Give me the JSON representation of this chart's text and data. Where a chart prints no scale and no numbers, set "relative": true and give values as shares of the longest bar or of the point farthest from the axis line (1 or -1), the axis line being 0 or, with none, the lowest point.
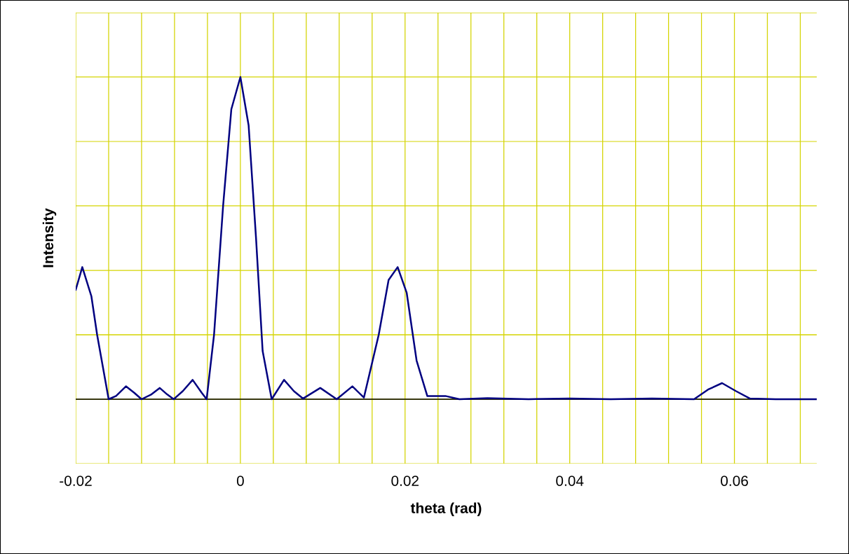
{
  "chart_data": {
    "type": "line",
    "xlabel": "theta (rad)",
    "ylabel": "Intensity",
    "relative": true,
    "grid": true,
    "marker": "none",
    "line_style": "solid",
    "xlim": [
      -0.02,
      0.07
    ],
    "xticks": [
      -0.02,
      {
        "value": -0.016,
        "label": null
      },
      {
        "value": -0.012,
        "label": null
      },
      {
        "value": -0.008,
        "label": null
      },
      {
        "value": -0.004,
        "label": null
      },
      0,
      {
        "value": 0.004,
        "label": null
      },
      {
        "value": 0.008,
        "label": null
      },
      {
        "value": 0.012,
        "label": null
      },
      {
        "value": 0.016,
        "label": null
      },
      0.02,
      {
        "value": 0.024,
        "label": null
      },
      {
        "value": 0.028,
        "label": null
      },
      {
        "value": 0.032,
        "label": null
      },
      {
        "value": 0.036,
        "label": null
      },
      0.04,
      {
        "value": 0.044,
        "label": null
      },
      {
        "value": 0.048,
        "label": null
      },
      {
        "value": 0.052,
        "label": null
      },
      {
        "value": 0.056,
        "label": null
      },
      0.06,
      {
        "value": 0.064,
        "label": null
      },
      {
        "value": 0.068,
        "label": null
      }
    ],
    "series": [
      {
        "color": "#000080",
        "x": [
          -0.02,
          -0.0192,
          -0.0181,
          -0.0174,
          -0.016,
          -0.0151,
          -0.0139,
          -0.0129,
          -0.012,
          -0.0108,
          -0.0098,
          -0.0089,
          -0.0081,
          -0.007,
          -0.0058,
          -0.0047,
          -0.0041,
          -0.0032,
          -0.0021,
          -0.0011,
          0,
          0.001,
          0.0019,
          0.0027,
          0.0038,
          0.0053,
          0.0065,
          0.0076,
          0.0097,
          0.0117,
          0.0136,
          0.015,
          0.0168,
          0.018,
          0.0191,
          0.0202,
          0.0214,
          0.0227,
          0.0249,
          0.0266,
          0.03,
          0.035,
          0.04,
          0.045,
          0.05,
          0.0551,
          0.0568,
          0.0585,
          0.0602,
          0.0619,
          0.065,
          0.07
        ],
        "values": [
          0.34,
          0.41,
          0.32,
          0.2,
          0.0,
          0.01,
          0.04,
          0.02,
          0.0,
          0.015,
          0.035,
          0.015,
          0.0,
          0.025,
          0.06,
          0.02,
          0.0,
          0.2,
          0.6,
          0.9,
          1.0,
          0.85,
          0.5,
          0.15,
          0.0,
          0.06,
          0.025,
          0.002,
          0.035,
          0.0,
          0.04,
          0.005,
          0.2,
          0.37,
          0.41,
          0.33,
          0.12,
          0.01,
          0.01,
          0.0,
          0.003,
          0.0,
          0.002,
          0.0,
          0.002,
          0.0,
          0.03,
          0.05,
          0.025,
          0.002,
          0.0,
          0.0
        ]
      }
    ]
  }
}
